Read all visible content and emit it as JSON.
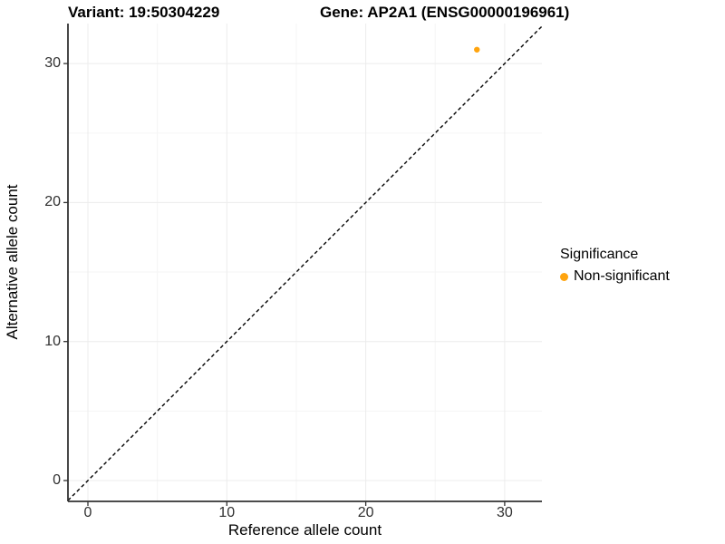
{
  "title": {
    "left": "Variant: 19:50304229",
    "right": "Gene: AP2A1 (ENSG00000196961)"
  },
  "chart_data": {
    "type": "scatter",
    "title": "Variant: 19:50304229   Gene: AP2A1 (ENSG00000196961)",
    "xlabel": "Reference allele count",
    "ylabel": "Alternative allele count",
    "x_ticks": [
      0,
      10,
      20,
      30
    ],
    "y_ticks": [
      0,
      10,
      20,
      30
    ],
    "xlim": [
      -1.5,
      32.7
    ],
    "ylim": [
      -1.5,
      32.9
    ],
    "grid": "major and minor light-gray gridlines, white background, axis lines left+bottom only",
    "points": [
      {
        "x": 28,
        "y": 31,
        "series": "Non-significant"
      }
    ],
    "reference_line": {
      "type": "identity (y = x)",
      "style": "dashed",
      "color": "#000000"
    },
    "legend": {
      "title": "Significance",
      "position": "right",
      "items": [
        {
          "label": "Non-significant",
          "color": "#FFA40E",
          "marker": "circle"
        }
      ]
    },
    "colors": {
      "point": "#FFA40E",
      "axis_line": "#333333",
      "grid_major": "#ECECEC",
      "grid_minor": "#F5F5F5"
    }
  }
}
